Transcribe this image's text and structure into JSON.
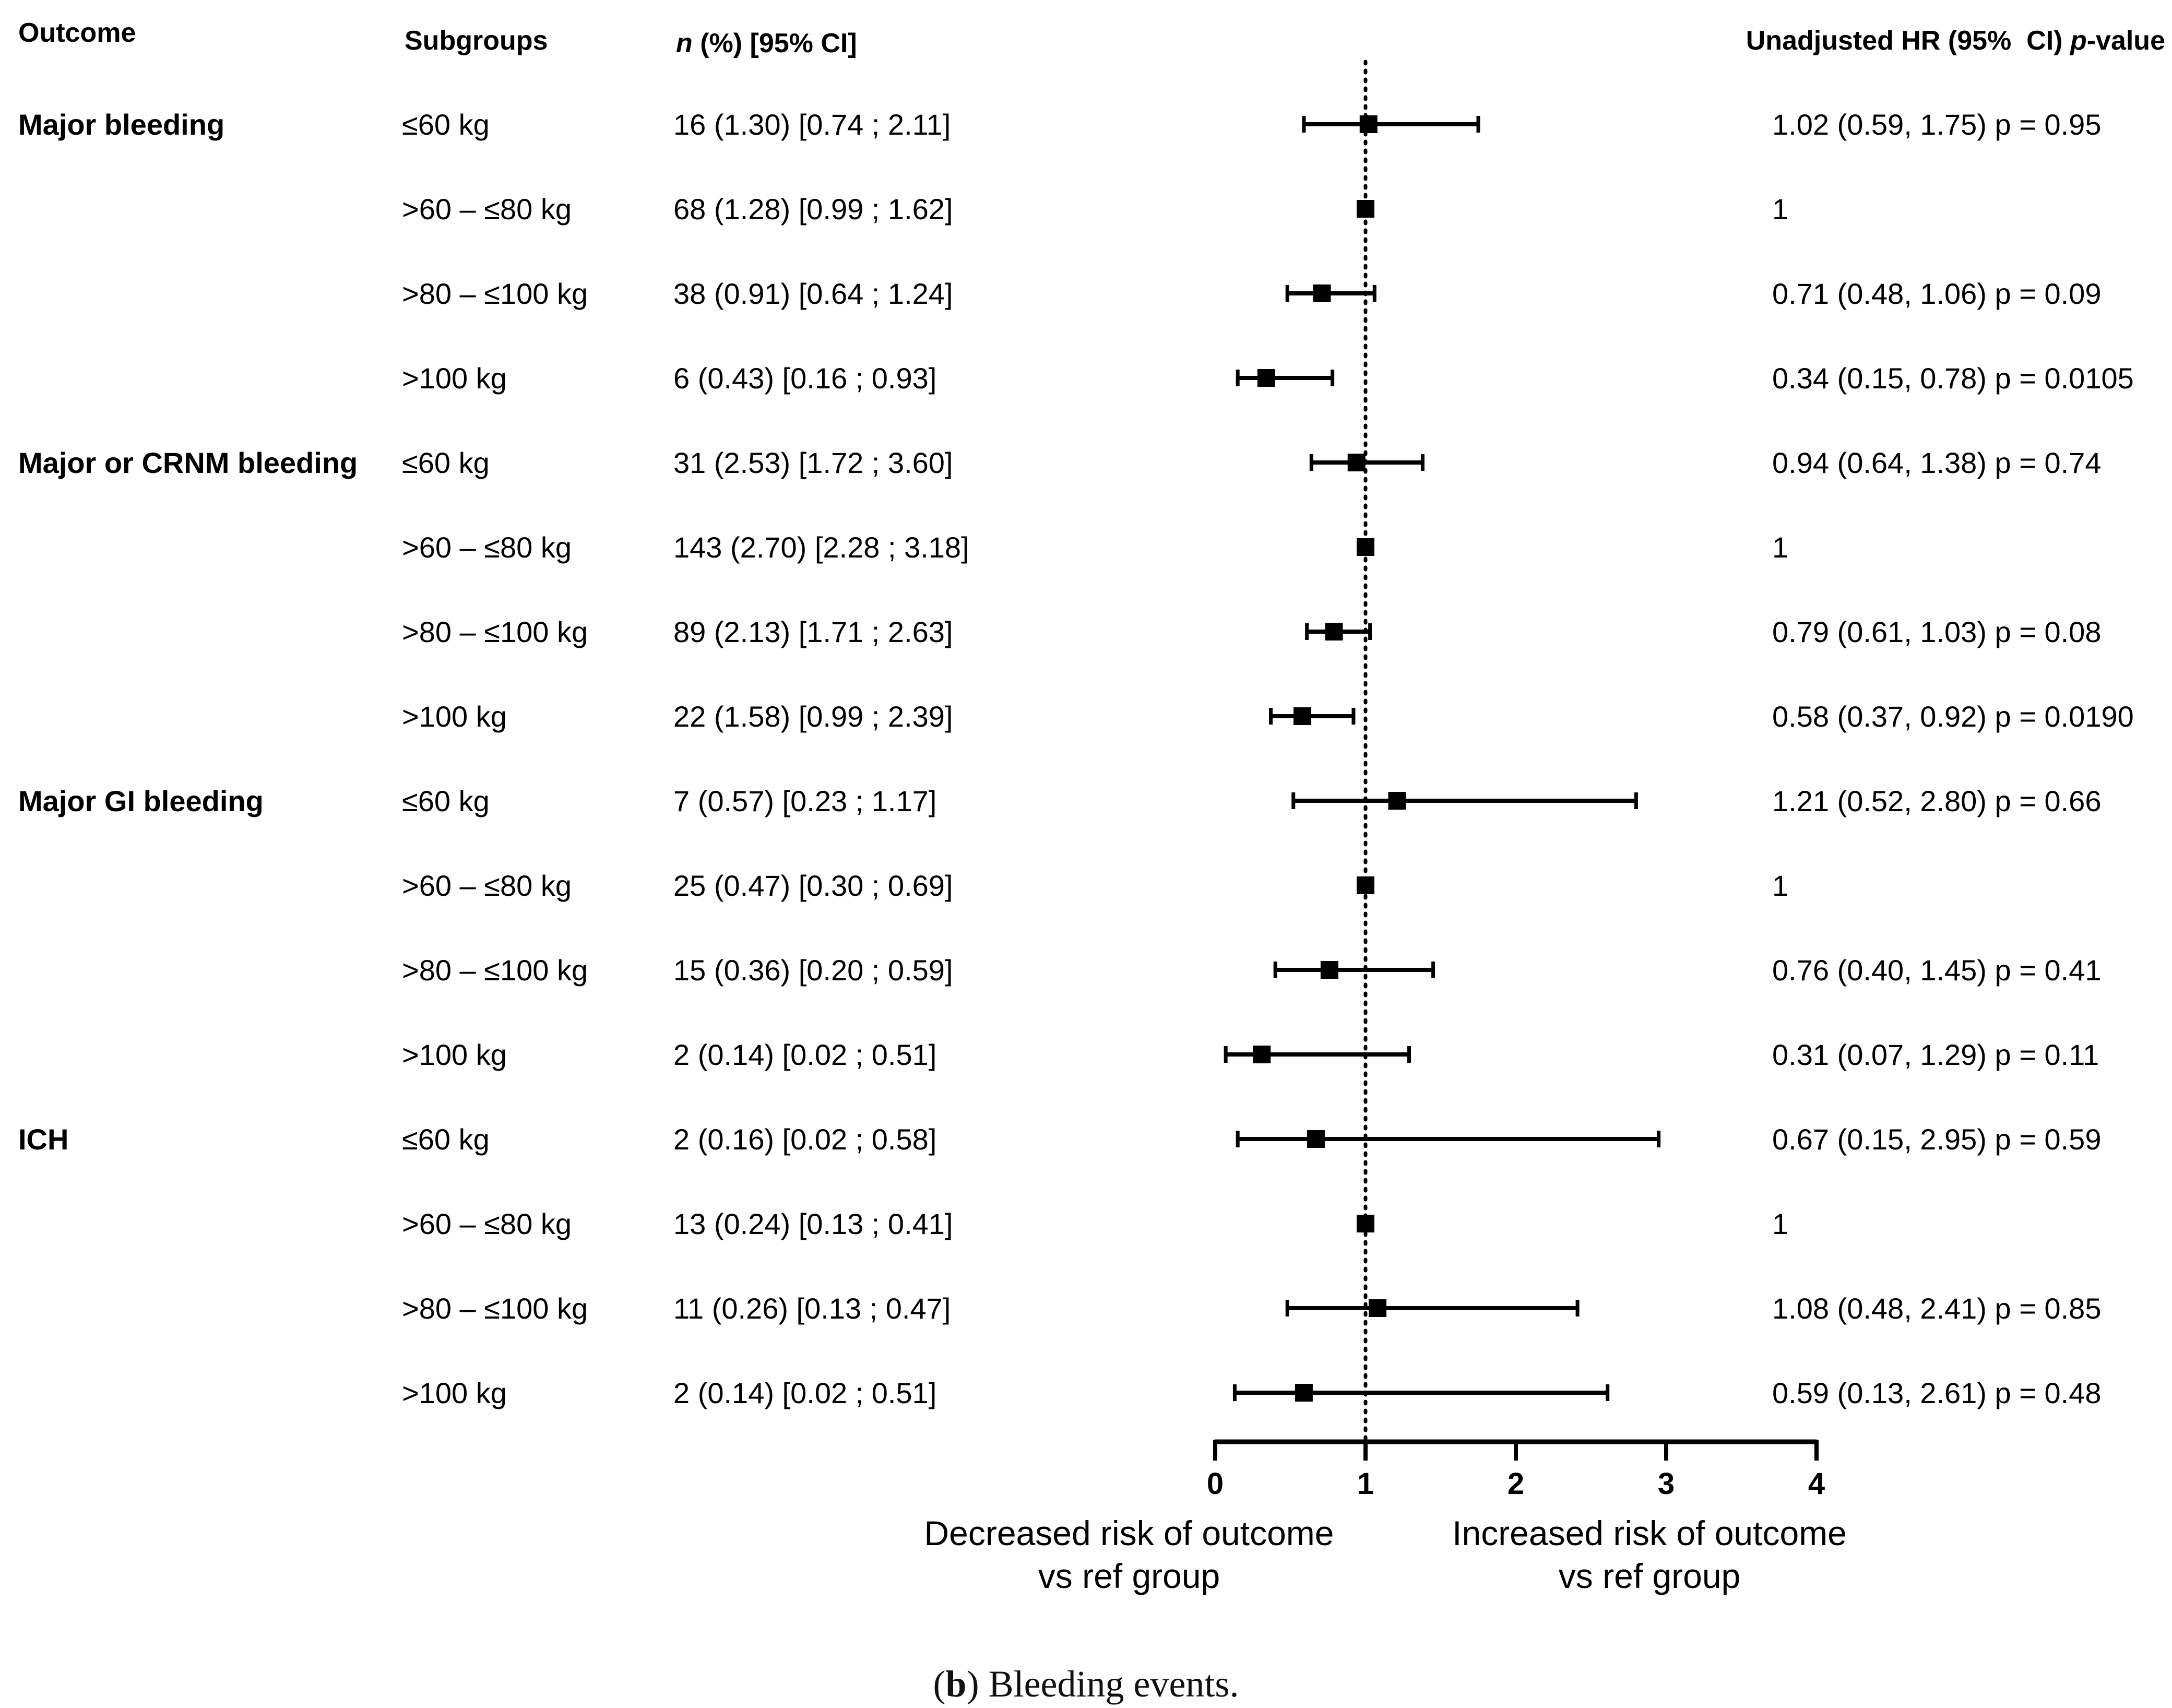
{
  "chart_data": {
    "type": "forest",
    "headers": {
      "outcome": "Outcome",
      "subgroups": "Subgroups",
      "n_italic": "n",
      "n_rest": " (%) [95% CI]",
      "hr_main": "Unadjusted HR (95%  CI) ",
      "hr_italic": "p",
      "hr_tail": "-value"
    },
    "groups": [
      {
        "name": "Major bleeding",
        "rows": [
          {
            "subgroup": "≤60 kg",
            "n": "16 (1.30) [0.74 ; 2.11]",
            "hr": 1.02,
            "lo": 0.59,
            "hi": 1.75,
            "hr_text": "1.02 (0.59, 1.75) p = 0.95"
          },
          {
            "subgroup": ">60 – ≤80 kg",
            "n": "68 (1.28) [0.99 ; 1.62]",
            "hr": 1,
            "lo": 1,
            "hi": 1,
            "hr_text": "1"
          },
          {
            "subgroup": ">80 – ≤100 kg",
            "n": "38 (0.91) [0.64 ; 1.24]",
            "hr": 0.71,
            "lo": 0.48,
            "hi": 1.06,
            "hr_text": "0.71 (0.48, 1.06) p = 0.09"
          },
          {
            "subgroup": ">100 kg",
            "n": "6 (0.43) [0.16 ; 0.93]",
            "hr": 0.34,
            "lo": 0.15,
            "hi": 0.78,
            "hr_text": "0.34 (0.15, 0.78) p = 0.0105"
          }
        ]
      },
      {
        "name": "Major or CRNM bleeding",
        "rows": [
          {
            "subgroup": "≤60 kg",
            "n": "31 (2.53) [1.72 ; 3.60]",
            "hr": 0.94,
            "lo": 0.64,
            "hi": 1.38,
            "hr_text": "0.94 (0.64, 1.38) p = 0.74"
          },
          {
            "subgroup": ">60 – ≤80 kg",
            "n": "143 (2.70) [2.28 ; 3.18]",
            "hr": 1,
            "lo": 1,
            "hi": 1,
            "hr_text": "1"
          },
          {
            "subgroup": ">80 – ≤100 kg",
            "n": "89 (2.13) [1.71 ; 2.63]",
            "hr": 0.79,
            "lo": 0.61,
            "hi": 1.03,
            "hr_text": "0.79 (0.61, 1.03) p = 0.08"
          },
          {
            "subgroup": ">100 kg",
            "n": "22 (1.58) [0.99 ; 2.39]",
            "hr": 0.58,
            "lo": 0.37,
            "hi": 0.92,
            "hr_text": "0.58 (0.37, 0.92) p = 0.0190"
          }
        ]
      },
      {
        "name": "Major GI bleeding",
        "rows": [
          {
            "subgroup": "≤60 kg",
            "n": "7 (0.57) [0.23 ; 1.17]",
            "hr": 1.21,
            "lo": 0.52,
            "hi": 2.8,
            "hr_text": "1.21 (0.52, 2.80) p = 0.66"
          },
          {
            "subgroup": ">60 – ≤80 kg",
            "n": "25 (0.47) [0.30 ; 0.69]",
            "hr": 1,
            "lo": 1,
            "hi": 1,
            "hr_text": "1"
          },
          {
            "subgroup": ">80 – ≤100 kg",
            "n": "15 (0.36) [0.20 ; 0.59]",
            "hr": 0.76,
            "lo": 0.4,
            "hi": 1.45,
            "hr_text": "0.76 (0.40, 1.45) p = 0.41"
          },
          {
            "subgroup": ">100 kg",
            "n": "2 (0.14) [0.02 ; 0.51]",
            "hr": 0.31,
            "lo": 0.07,
            "hi": 1.29,
            "hr_text": "0.31 (0.07, 1.29) p = 0.11"
          }
        ]
      },
      {
        "name": "ICH",
        "rows": [
          {
            "subgroup": "≤60 kg",
            "n": "2 (0.16) [0.02 ; 0.58]",
            "hr": 0.67,
            "lo": 0.15,
            "hi": 2.95,
            "hr_text": "0.67 (0.15, 2.95) p = 0.59"
          },
          {
            "subgroup": ">60 – ≤80 kg",
            "n": "13 (0.24) [0.13 ; 0.41]",
            "hr": 1,
            "lo": 1,
            "hi": 1,
            "hr_text": "1"
          },
          {
            "subgroup": ">80 – ≤100 kg",
            "n": "11 (0.26) [0.13 ; 0.47]",
            "hr": 1.08,
            "lo": 0.48,
            "hi": 2.41,
            "hr_text": "1.08 (0.48, 2.41) p = 0.85"
          },
          {
            "subgroup": ">100 kg",
            "n": "2 (0.14) [0.02 ; 0.51]",
            "hr": 0.59,
            "lo": 0.13,
            "hi": 2.61,
            "hr_text": "0.59 (0.13, 2.61) p = 0.48"
          }
        ]
      }
    ],
    "x_axis": {
      "range": [
        0,
        4
      ],
      "ticks": [
        0,
        1,
        2,
        3,
        4
      ],
      "reference_line": 1,
      "label_left": [
        "Decreased risk of outcome",
        "vs ref group"
      ],
      "label_right": [
        "Increased risk of outcome",
        "vs ref group"
      ]
    },
    "marker_color": "#000000"
  },
  "caption": {
    "letter": "b",
    "text": "Bleeding events."
  }
}
